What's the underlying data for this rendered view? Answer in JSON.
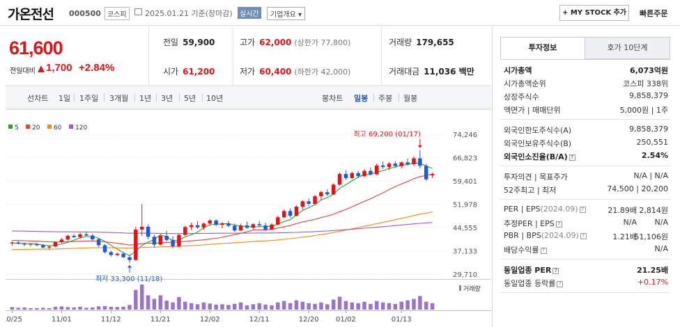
{
  "header": {
    "stock_name": "가온전선",
    "stock_code": "000500",
    "market": "코스피",
    "date": "2025.01.21 기준(장마감)",
    "realtime_label": "실시간",
    "overview_label": "기업개요 ▾",
    "mystock_label": "+ MY STOCK 추가",
    "quick_order_label": "빠른주문"
  },
  "price": {
    "current": "61,600",
    "vs_label": "전일대비",
    "change": "1,700",
    "change_pct": "+2.84%",
    "direction": "up",
    "up_color": "#e0151b",
    "down_color": "#1f5bd6"
  },
  "summary": {
    "prev_label": "전일",
    "prev_value": "59,900",
    "high_label": "고가",
    "high_value": "62,000",
    "upper_limit": "(상한가 77,800)",
    "volume_label": "거래량",
    "volume_value": "179,655",
    "open_label": "시가",
    "open_value": "61,200",
    "low_label": "저가",
    "low_value": "60,400",
    "lower_limit": "(하한가 42,000)",
    "amount_label": "거래대금",
    "amount_value": "11,036 백만"
  },
  "period_bar": {
    "line_label": "선차트",
    "periods": [
      "1일",
      "1주일",
      "3개월",
      "1년",
      "3년",
      "5년",
      "10년"
    ],
    "candle_label": "봉차트",
    "candle_periods": [
      "일봉",
      "주봉",
      "월봉"
    ],
    "active_candle": "일봉"
  },
  "chart_data": {
    "type": "candlestick",
    "legend": [
      {
        "name": "5",
        "color": "#2ca02c"
      },
      {
        "name": "20",
        "color": "#e8403a"
      },
      {
        "name": "60",
        "color": "#f08c1e"
      },
      {
        "name": "120",
        "color": "#9b59c7"
      }
    ],
    "y_ticks": [
      "74,246",
      "66,823",
      "59,401",
      "51,978",
      "44,555",
      "37,133",
      "29,710"
    ],
    "ylim": [
      29710,
      74246
    ],
    "x_ticks": [
      "10/25",
      "11/01",
      "11/12",
      "11/21",
      "12/02",
      "12/11",
      "12/20",
      "01/02",
      "01/13"
    ],
    "high_annotation": "최고 69,200 (01/17)",
    "low_annotation": "최저 33,300 (11/18)",
    "volume_label": "거래량",
    "candles": [
      [
        39500,
        40200,
        38800,
        39800
      ],
      [
        39800,
        40300,
        39200,
        39400
      ],
      [
        39400,
        39800,
        38700,
        39100
      ],
      [
        39100,
        39500,
        38500,
        39300
      ],
      [
        39300,
        39600,
        38600,
        38900
      ],
      [
        38900,
        39300,
        37900,
        38200
      ],
      [
        38200,
        38700,
        37600,
        38500
      ],
      [
        38500,
        40100,
        38300,
        39900
      ],
      [
        39900,
        41200,
        39500,
        40700
      ],
      [
        40700,
        42300,
        40300,
        41900
      ],
      [
        41900,
        42600,
        41200,
        41500
      ],
      [
        41500,
        42800,
        41000,
        42400
      ],
      [
        42400,
        43200,
        41900,
        42000
      ],
      [
        42000,
        42500,
        40200,
        40800
      ],
      [
        40800,
        41300,
        38400,
        38900
      ],
      [
        38900,
        39300,
        36300,
        36700
      ],
      [
        36700,
        37200,
        35300,
        35800
      ],
      [
        35800,
        36500,
        35400,
        36200
      ],
      [
        36200,
        36800,
        34800,
        35100
      ],
      [
        35100,
        35900,
        33300,
        34200
      ],
      [
        34200,
        44800,
        34000,
        43900
      ],
      [
        43900,
        52000,
        41800,
        44800
      ],
      [
        44800,
        45500,
        40800,
        41600
      ],
      [
        41600,
        42300,
        38200,
        39100
      ],
      [
        39100,
        42400,
        38800,
        41900
      ],
      [
        41900,
        43500,
        40100,
        40600
      ],
      [
        40600,
        41800,
        37900,
        38600
      ],
      [
        38600,
        42500,
        38300,
        42200
      ],
      [
        42200,
        45200,
        41900,
        44700
      ],
      [
        44700,
        46100,
        43700,
        45300
      ],
      [
        45300,
        46600,
        44100,
        44600
      ],
      [
        44600,
        46200,
        43800,
        45800
      ],
      [
        45800,
        47300,
        45100,
        46800
      ],
      [
        46800,
        47100,
        45000,
        45400
      ],
      [
        45400,
        46300,
        44300,
        45900
      ],
      [
        45900,
        46700,
        44700,
        45100
      ],
      [
        45100,
        45800,
        43200,
        43600
      ],
      [
        43600,
        45700,
        43400,
        45200
      ],
      [
        45200,
        46400,
        44100,
        44500
      ],
      [
        44500,
        45900,
        44000,
        45600
      ],
      [
        45600,
        46600,
        44800,
        45200
      ],
      [
        45200,
        46100,
        43400,
        43900
      ],
      [
        43900,
        45900,
        43700,
        45500
      ],
      [
        45500,
        48300,
        45300,
        47800
      ],
      [
        47800,
        50300,
        47400,
        49800
      ],
      [
        49800,
        50700,
        47700,
        48300
      ],
      [
        48300,
        51600,
        48100,
        51200
      ],
      [
        51200,
        53300,
        50300,
        52900
      ],
      [
        52900,
        53800,
        51400,
        52100
      ],
      [
        52100,
        55000,
        51900,
        54500
      ],
      [
        54500,
        56200,
        53300,
        55800
      ],
      [
        55800,
        56800,
        54500,
        55100
      ],
      [
        55100,
        58600,
        54900,
        58200
      ],
      [
        58200,
        62100,
        57900,
        61600
      ],
      [
        61600,
        62800,
        59700,
        60300
      ],
      [
        60300,
        62300,
        59900,
        61900
      ],
      [
        61900,
        62600,
        60300,
        60900
      ],
      [
        60900,
        63200,
        60600,
        62600
      ],
      [
        62600,
        63700,
        61100,
        61500
      ],
      [
        61500,
        64900,
        61300,
        64300
      ],
      [
        64300,
        65600,
        63200,
        63800
      ],
      [
        63800,
        65300,
        62900,
        64900
      ],
      [
        64900,
        65700,
        63700,
        64100
      ],
      [
        64100,
        65600,
        63400,
        65300
      ],
      [
        65300,
        66500,
        64300,
        64700
      ],
      [
        64700,
        67200,
        64100,
        66600
      ],
      [
        66600,
        69200,
        63400,
        64200
      ],
      [
        64200,
        64900,
        59400,
        59900
      ],
      [
        61200,
        62000,
        60400,
        61600
      ]
    ],
    "volumes": [
      7,
      5,
      6,
      4,
      4,
      5,
      4,
      8,
      9,
      7,
      6,
      8,
      5,
      6,
      9,
      10,
      8,
      7,
      8,
      13,
      55,
      70,
      40,
      30,
      40,
      25,
      20,
      35,
      22,
      18,
      15,
      20,
      17,
      14,
      15,
      13,
      16,
      20,
      12,
      15,
      18,
      14,
      12,
      20,
      24,
      18,
      26,
      22,
      18,
      16,
      20,
      15,
      28,
      36,
      24,
      20,
      18,
      22,
      16,
      24,
      20,
      18,
      16,
      22,
      26,
      30,
      38,
      22,
      18
    ]
  },
  "invest_panel": {
    "tab_active": "투자정보",
    "tab_other": "호가 10단계",
    "group1": [
      {
        "label": "시가총액",
        "value": "6,073억원",
        "bold": true
      },
      {
        "label": "시가총액순위",
        "value": "코스피 338위"
      },
      {
        "label": "상장주식수",
        "value": "9,858,379"
      },
      {
        "label": "액면가 | 매매단위",
        "value": "5,000원 | 1주"
      }
    ],
    "group2": [
      {
        "label": "외국인한도주식수(A)",
        "value": "9,858,379"
      },
      {
        "label": "외국인보유주식수(B)",
        "value": "250,551"
      },
      {
        "label": "외국인소진율(B/A)",
        "value": "2.54%",
        "bold": true
      }
    ],
    "group3": [
      {
        "label": "투자의견 | 목표주가",
        "value": "N/A | N/A"
      },
      {
        "label": "52주최고 | 최저",
        "value": "74,500 | 20,200"
      }
    ],
    "group4": [
      {
        "label": "PER | EPS",
        "label_sub": "(2024.09)",
        "mid": "21.89배",
        "value": "2,814원"
      },
      {
        "label": "추정PER | EPS",
        "mid": "N/A",
        "value": "N/A"
      },
      {
        "label": "PBR | BPS",
        "label_sub": "(2024.09)",
        "mid": "1.21배",
        "value": "51,106원"
      },
      {
        "label": "배당수익률",
        "value": "N/A"
      }
    ],
    "group5": [
      {
        "label": "동일업종 PER",
        "value": "21.25배",
        "bold": true
      },
      {
        "label": "동일업종 등락률",
        "value": "+0.17%",
        "red": true
      }
    ]
  }
}
